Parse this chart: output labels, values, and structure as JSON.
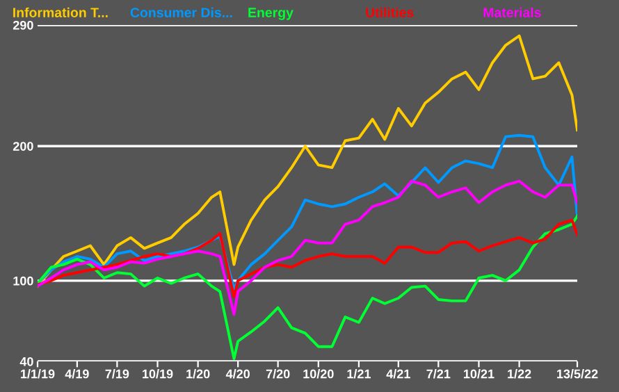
{
  "chart_data": {
    "type": "line",
    "x": [
      "2019-01-01",
      "2019-02-01",
      "2019-03-01",
      "2019-04-01",
      "2019-05-01",
      "2019-06-01",
      "2019-07-01",
      "2019-08-01",
      "2019-09-01",
      "2019-10-01",
      "2019-11-01",
      "2019-12-01",
      "2020-01-01",
      "2020-02-01",
      "2020-02-20",
      "2020-03-23",
      "2020-04-01",
      "2020-05-01",
      "2020-06-01",
      "2020-07-01",
      "2020-08-01",
      "2020-09-01",
      "2020-10-01",
      "2020-11-01",
      "2020-12-01",
      "2021-01-01",
      "2021-02-01",
      "2021-03-01",
      "2021-04-01",
      "2021-05-01",
      "2021-06-01",
      "2021-07-01",
      "2021-08-01",
      "2021-09-01",
      "2021-10-01",
      "2021-11-01",
      "2021-12-01",
      "2022-01-01",
      "2022-02-01",
      "2022-03-01",
      "2022-04-01",
      "2022-05-01",
      "2022-05-13"
    ],
    "series": [
      {
        "name": "Information T...",
        "color": "#ffcc00",
        "values": [
          96,
          108,
          118,
          122,
          126,
          112,
          126,
          132,
          124,
          128,
          132,
          142,
          150,
          162,
          166,
          112,
          125,
          145,
          160,
          170,
          184,
          200,
          186,
          184,
          204,
          206,
          220,
          205,
          228,
          215,
          232,
          240,
          250,
          255,
          242,
          262,
          275,
          282,
          250,
          252,
          262,
          238,
          212
        ]
      },
      {
        "name": "Consumer Dis...",
        "color": "#0099ff",
        "values": [
          98,
          108,
          114,
          118,
          116,
          110,
          120,
          122,
          115,
          118,
          120,
          122,
          125,
          130,
          133,
          94,
          100,
          112,
          120,
          130,
          140,
          160,
          157,
          155,
          157,
          162,
          166,
          172,
          163,
          173,
          184,
          173,
          184,
          189,
          187,
          184,
          207,
          208,
          207,
          184,
          171,
          192,
          148
        ]
      },
      {
        "name": "Energy",
        "color": "#00ff33",
        "values": [
          98,
          110,
          112,
          116,
          112,
          102,
          106,
          105,
          96,
          102,
          98,
          102,
          105,
          96,
          92,
          42,
          55,
          62,
          70,
          80,
          65,
          61,
          51,
          51,
          73,
          69,
          87,
          83,
          87,
          95,
          96,
          86,
          85,
          85,
          102,
          104,
          100,
          108,
          125,
          135,
          138,
          142,
          148
        ]
      },
      {
        "name": "Utilities",
        "color": "#ff0000",
        "values": [
          97,
          100,
          104,
          106,
          108,
          110,
          112,
          115,
          118,
          120,
          118,
          120,
          124,
          130,
          135,
          88,
          100,
          105,
          110,
          112,
          110,
          115,
          118,
          120,
          118,
          118,
          118,
          113,
          125,
          125,
          121,
          121,
          128,
          129,
          122,
          126,
          129,
          132,
          128,
          131,
          142,
          145,
          134
        ]
      },
      {
        "name": "Materials",
        "color": "#ff00ff",
        "values": [
          96,
          102,
          108,
          112,
          114,
          108,
          110,
          114,
          113,
          116,
          118,
          120,
          122,
          120,
          118,
          75,
          92,
          100,
          110,
          115,
          118,
          130,
          128,
          128,
          142,
          145,
          155,
          158,
          162,
          174,
          171,
          162,
          166,
          169,
          158,
          166,
          171,
          174,
          166,
          162,
          171,
          171,
          158
        ]
      }
    ],
    "xlim": [
      "2019-01-01",
      "2022-05-13"
    ],
    "xticks": [
      {
        "value": "2019-01-01",
        "label": "1/1/19"
      },
      {
        "value": "2019-04-01",
        "label": "4/19"
      },
      {
        "value": "2019-07-01",
        "label": "7/19"
      },
      {
        "value": "2019-10-01",
        "label": "10/19"
      },
      {
        "value": "2020-01-01",
        "label": "1/20"
      },
      {
        "value": "2020-04-01",
        "label": "4/20"
      },
      {
        "value": "2020-07-01",
        "label": "7/20"
      },
      {
        "value": "2020-10-01",
        "label": "10/20"
      },
      {
        "value": "2021-01-01",
        "label": "1/21"
      },
      {
        "value": "2021-04-01",
        "label": "4/21"
      },
      {
        "value": "2021-07-01",
        "label": "7/21"
      },
      {
        "value": "2021-10-01",
        "label": "10/21"
      },
      {
        "value": "2022-01-01",
        "label": "1/22"
      },
      {
        "value": "2022-05-13",
        "label": "13/5/22"
      }
    ],
    "ylim": [
      40,
      290
    ],
    "yticks": [
      40,
      100,
      200,
      290
    ],
    "grid": "y",
    "legend": "top",
    "marker": "none",
    "line_style": "solid"
  }
}
